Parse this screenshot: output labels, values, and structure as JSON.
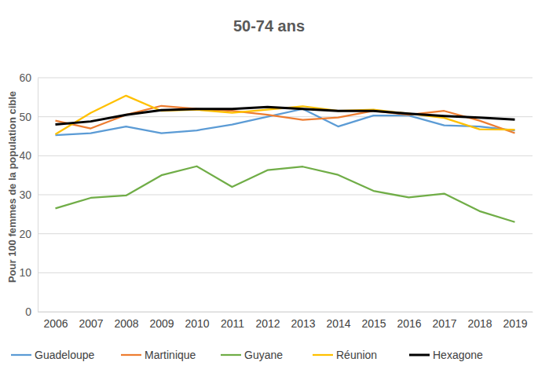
{
  "chart_data": {
    "type": "line",
    "title": "50-74 ans",
    "y_label": "Pour 100 femmes de la population cible",
    "categories": [
      "2006",
      "2007",
      "2008",
      "2009",
      "2010",
      "2011",
      "2012",
      "2013",
      "2014",
      "2015",
      "2016",
      "2017",
      "2018",
      "2019"
    ],
    "series": [
      {
        "name": "Guadeloupe",
        "color": "#5b9bd5",
        "values": [
          45.3,
          45.8,
          47.5,
          45.8,
          46.5,
          48,
          50,
          52,
          47.5,
          50.3,
          50.3,
          47.8,
          47.5,
          46.5
        ]
      },
      {
        "name": "Martinique",
        "color": "#ed7d31",
        "values": [
          49,
          47,
          50.5,
          52.8,
          52,
          51.5,
          50.5,
          49.2,
          49.8,
          51.5,
          50.5,
          51.5,
          49,
          45.8
        ]
      },
      {
        "name": "Guyane",
        "color": "#70ad47",
        "values": [
          26.5,
          29.2,
          29.8,
          35,
          37.3,
          32,
          36.3,
          37.2,
          35.1,
          31,
          29.3,
          30.3,
          25.8,
          23
        ]
      },
      {
        "name": "Réunion",
        "color": "#ffc000",
        "values": [
          45.5,
          51,
          55.4,
          51.5,
          51.8,
          51,
          51.8,
          52.7,
          51.5,
          51.8,
          50.8,
          49.7,
          46.8,
          46.7
        ]
      },
      {
        "name": "Hexagone",
        "color": "#000000",
        "values": [
          48,
          48.8,
          50.5,
          51.7,
          52,
          52,
          52.5,
          52,
          51.5,
          51.5,
          50.8,
          50.2,
          49.8,
          49.3
        ]
      }
    ],
    "ylim": [
      0,
      60
    ],
    "yticks": [
      0,
      10,
      20,
      30,
      40,
      50,
      60
    ],
    "grid": true,
    "legend": "bottom"
  }
}
